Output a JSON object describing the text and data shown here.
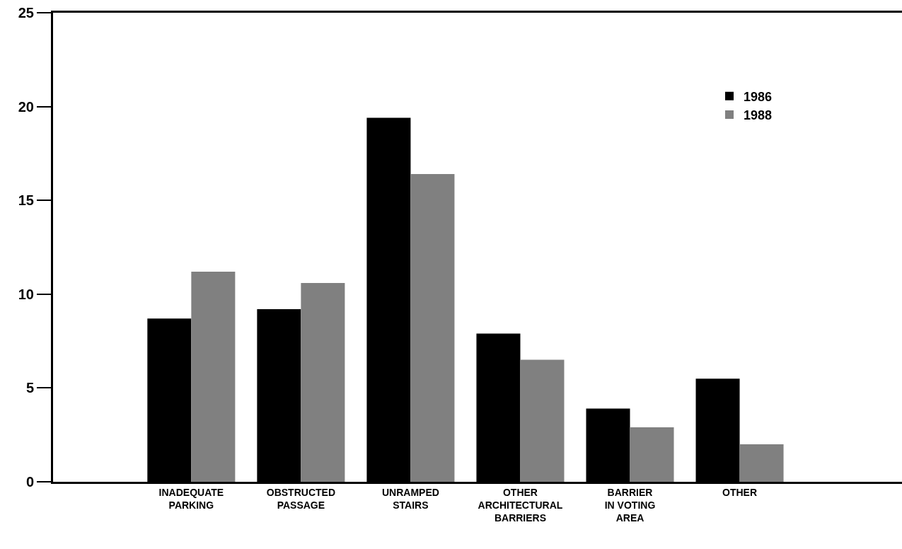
{
  "chart_data": {
    "type": "bar",
    "categories": [
      "INADEQUATE\nPARKING",
      "OBSTRUCTED\nPASSAGE",
      "UNRAMPED\nSTAIRS",
      "OTHER\nARCHITECTURAL\nBARRIERS",
      "BARRIER\nIN VOTING\nAREA",
      "OTHER"
    ],
    "series": [
      {
        "name": "1986",
        "color": "#000000",
        "values": [
          8.7,
          9.2,
          19.4,
          7.9,
          3.9,
          5.5
        ]
      },
      {
        "name": "1988",
        "color": "#808080",
        "values": [
          11.2,
          10.6,
          16.4,
          6.5,
          2.9,
          2.0
        ]
      }
    ],
    "ylim": [
      0,
      25
    ],
    "yticks": [
      0,
      5,
      10,
      15,
      20,
      25
    ],
    "legend": "top right"
  }
}
